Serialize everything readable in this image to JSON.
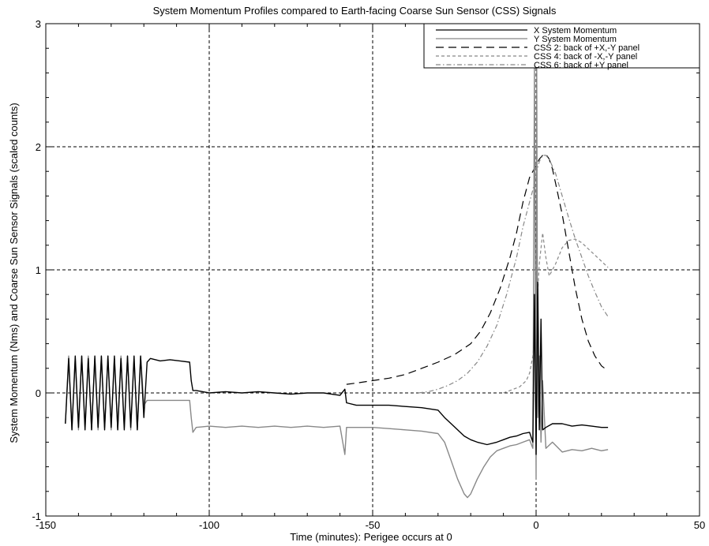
{
  "chart_data": {
    "type": "line",
    "title": "System Momentum Profiles compared to Earth-facing Coarse Sun Sensor (CSS) Signals",
    "xlabel": "Time (minutes): Perigee occurs at 0",
    "ylabel": "System Momentum (Nms) and Coarse Sun Sensor Signals (scaled counts)",
    "xlim": [
      -150,
      50
    ],
    "ylim": [
      -1,
      3
    ],
    "xticks": [
      -150,
      -100,
      -50,
      0,
      50
    ],
    "yticks": [
      -1,
      0,
      1,
      2,
      3
    ],
    "grid": "dashed at x=-100, -50, 0 and y=0, 1, 2",
    "legend_position": "top-right",
    "series": [
      {
        "name": "X System Momentum",
        "style": "solid",
        "color": "#000000",
        "x": [
          -144,
          -143,
          -142,
          -141,
          -140,
          -139,
          -138,
          -137,
          -136,
          -135,
          -134,
          -133,
          -132,
          -131,
          -130,
          -129,
          -128,
          -127,
          -126,
          -125,
          -124,
          -123,
          -122,
          -121,
          -120,
          -119,
          -118,
          -115,
          -112,
          -109,
          -106,
          -105.5,
          -105,
          -104,
          -100,
          -95,
          -90,
          -85,
          -80,
          -75,
          -70,
          -65,
          -60,
          -58.5,
          -58,
          -55,
          -50,
          -45,
          -40,
          -35,
          -30,
          -28,
          -26,
          -24,
          -22,
          -20,
          -18,
          -15,
          -12,
          -10,
          -8,
          -6,
          -4,
          -2,
          -1,
          -0.5,
          0,
          0.5,
          1,
          1.5,
          2,
          3,
          5,
          8,
          11,
          14,
          17,
          20,
          22
        ],
        "y": [
          -0.25,
          0.28,
          -0.3,
          0.3,
          -0.28,
          0.3,
          -0.3,
          0.28,
          -0.3,
          0.3,
          -0.28,
          0.3,
          -0.3,
          0.3,
          -0.28,
          0.3,
          -0.3,
          0.28,
          -0.3,
          0.3,
          -0.28,
          0.3,
          -0.3,
          0.3,
          -0.2,
          0.25,
          0.28,
          0.26,
          0.27,
          0.26,
          0.25,
          0.1,
          0.02,
          0.02,
          0.0,
          0.01,
          0.0,
          0.01,
          0.0,
          -0.01,
          0.0,
          0.0,
          -0.02,
          0.03,
          -0.08,
          -0.1,
          -0.1,
          -0.1,
          -0.11,
          -0.12,
          -0.14,
          -0.2,
          -0.25,
          -0.3,
          -0.35,
          -0.38,
          -0.4,
          -0.42,
          -0.4,
          -0.38,
          -0.36,
          -0.35,
          -0.33,
          -0.32,
          -0.4,
          0.8,
          -0.5,
          0.9,
          -0.3,
          0.6,
          -0.3,
          -0.28,
          -0.25,
          -0.25,
          -0.27,
          -0.26,
          -0.27,
          -0.28,
          -0.28
        ]
      },
      {
        "name": "Y System Momentum",
        "style": "solid",
        "color": "#888888",
        "x": [
          -144,
          -143,
          -142,
          -141,
          -140,
          -139,
          -138,
          -137,
          -136,
          -135,
          -134,
          -133,
          -132,
          -131,
          -130,
          -129,
          -128,
          -127,
          -126,
          -125,
          -124,
          -123,
          -122,
          -121,
          -120,
          -119,
          -118,
          -115,
          -112,
          -109,
          -106,
          -105.5,
          -105,
          -104,
          -100,
          -95,
          -90,
          -85,
          -80,
          -75,
          -70,
          -65,
          -60,
          -58.5,
          -58,
          -55,
          -50,
          -45,
          -40,
          -35,
          -30,
          -28,
          -26,
          -24,
          -22,
          -21,
          -20,
          -18,
          -16,
          -14,
          -12,
          -10,
          -8,
          -6,
          -4,
          -2,
          -1,
          -0.5,
          0,
          0.2,
          0.5,
          1,
          1.5,
          2,
          3,
          5,
          8,
          11,
          14,
          17,
          20,
          22
        ],
        "y": [
          -0.25,
          0.3,
          -0.3,
          0.28,
          -0.3,
          0.3,
          -0.28,
          0.3,
          -0.3,
          0.28,
          -0.3,
          0.3,
          -0.28,
          0.3,
          -0.3,
          0.28,
          -0.3,
          0.3,
          -0.28,
          0.3,
          -0.3,
          0.28,
          -0.3,
          0.3,
          -0.1,
          -0.06,
          -0.06,
          -0.06,
          -0.06,
          -0.06,
          -0.06,
          -0.2,
          -0.32,
          -0.28,
          -0.27,
          -0.28,
          -0.27,
          -0.28,
          -0.27,
          -0.28,
          -0.27,
          -0.28,
          -0.27,
          -0.5,
          -0.28,
          -0.28,
          -0.28,
          -0.29,
          -0.3,
          -0.31,
          -0.33,
          -0.4,
          -0.55,
          -0.7,
          -0.82,
          -0.85,
          -0.82,
          -0.7,
          -0.6,
          -0.52,
          -0.47,
          -0.45,
          -0.43,
          -0.42,
          -0.4,
          -0.38,
          -0.45,
          2.65,
          -0.7,
          2.65,
          -0.2,
          0.3,
          -0.4,
          0.1,
          -0.45,
          -0.4,
          -0.48,
          -0.46,
          -0.47,
          -0.45,
          -0.47,
          -0.46
        ]
      },
      {
        "name": "CSS 2: back of +X,-Y panel",
        "style": "long-dash",
        "color": "#000000",
        "x": [
          -58,
          -55,
          -50,
          -45,
          -40,
          -35,
          -30,
          -25,
          -20,
          -17,
          -14,
          -11,
          -8,
          -6,
          -4,
          -2,
          -1,
          0,
          1,
          2,
          3,
          4,
          5,
          6,
          8,
          10,
          12,
          14,
          16,
          18,
          20,
          22
        ],
        "y": [
          0.07,
          0.08,
          0.1,
          0.12,
          0.15,
          0.2,
          0.25,
          0.31,
          0.4,
          0.5,
          0.65,
          0.85,
          1.1,
          1.3,
          1.55,
          1.75,
          1.8,
          1.85,
          1.9,
          1.93,
          1.94,
          1.9,
          1.82,
          1.7,
          1.45,
          1.15,
          0.85,
          0.6,
          0.42,
          0.3,
          0.22,
          0.18
        ]
      },
      {
        "name": "CSS 4: back of -X,-Y panel",
        "style": "short-dash",
        "color": "#888888",
        "x": [
          -10,
          -8,
          -5,
          -3,
          -2,
          -1,
          0,
          1,
          2,
          3,
          4,
          5,
          6,
          8,
          10,
          12,
          14,
          16,
          18,
          20,
          22
        ],
        "y": [
          0.0,
          0.02,
          0.05,
          0.1,
          0.16,
          0.3,
          0.6,
          1.05,
          1.3,
          1.1,
          0.95,
          1.0,
          1.05,
          1.18,
          1.24,
          1.25,
          1.22,
          1.17,
          1.12,
          1.07,
          1.02
        ]
      },
      {
        "name": "CSS 6: back of +Y panel",
        "style": "dash-dot",
        "color": "#888888",
        "x": [
          -36,
          -33,
          -30,
          -27,
          -24,
          -21,
          -18,
          -15,
          -12,
          -9,
          -6,
          -4,
          -2,
          -1,
          0,
          1,
          2,
          3,
          4,
          6,
          8,
          10,
          12,
          14,
          16,
          18,
          20,
          22
        ],
        "y": [
          0.0,
          0.01,
          0.03,
          0.06,
          0.1,
          0.16,
          0.25,
          0.38,
          0.55,
          0.8,
          1.1,
          1.35,
          1.55,
          1.65,
          1.78,
          1.88,
          1.93,
          1.93,
          1.9,
          1.78,
          1.6,
          1.42,
          1.25,
          1.1,
          0.95,
          0.82,
          0.7,
          0.62
        ]
      }
    ]
  }
}
